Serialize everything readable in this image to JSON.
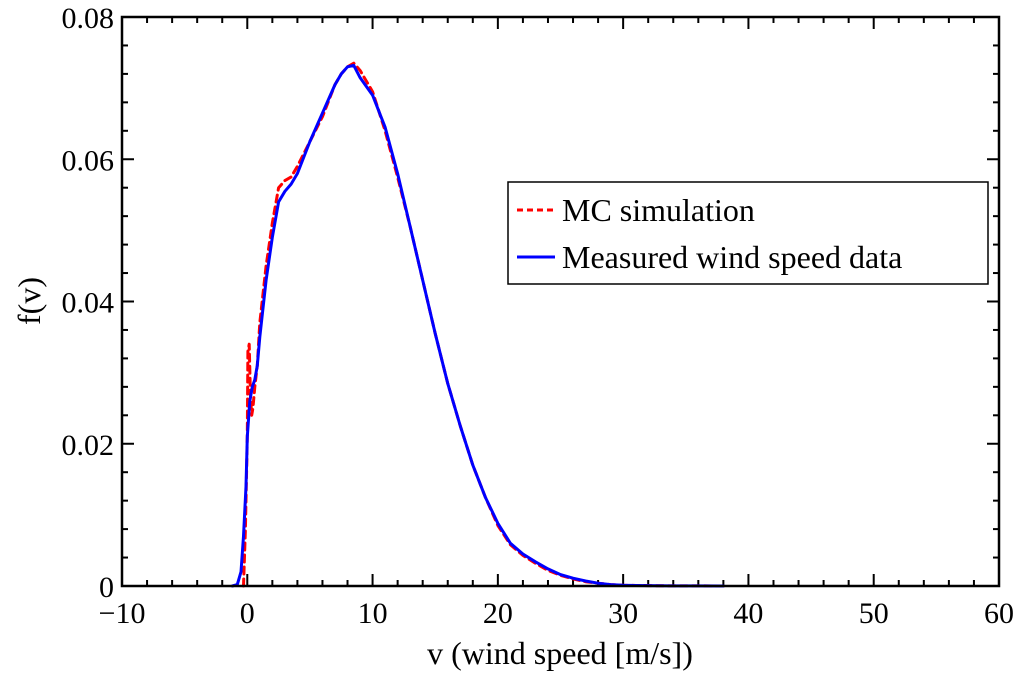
{
  "chart_data": {
    "type": "line",
    "title": "",
    "xlabel": "v (wind speed [m/s])",
    "ylabel": "f(v)",
    "xlim": [
      -10,
      60
    ],
    "ylim": [
      0,
      0.08
    ],
    "xticks": [
      -10,
      0,
      10,
      20,
      30,
      40,
      50,
      60
    ],
    "xtick_labels": [
      "−10",
      "0",
      "10",
      "20",
      "30",
      "40",
      "50",
      "60"
    ],
    "yticks": [
      0,
      0.02,
      0.04,
      0.06,
      0.08
    ],
    "ytick_labels": [
      "0",
      "0.02",
      "0.04",
      "0.06",
      "0.08"
    ],
    "grid": false,
    "legend_position": "right",
    "series": [
      {
        "name": "MC simulation",
        "color": "#ff0000",
        "style": "dashed",
        "x": [
          -0.3,
          -0.15,
          0.0,
          0.05,
          0.15,
          0.25,
          0.35,
          0.45,
          0.6,
          0.8,
          1.0,
          1.5,
          2.0,
          2.5,
          3.0,
          3.5,
          4.0,
          5.0,
          6.0,
          7.0,
          7.5,
          8.0,
          8.5,
          9.0,
          10.0,
          11.0,
          12.0,
          13.0,
          14.0,
          15.0,
          16.0,
          17.0,
          18.0,
          19.0,
          20.0,
          21.0,
          22.0,
          23.0,
          24.0,
          25.0,
          26.0,
          27.0,
          28.0,
          29.0,
          30.0,
          32.0,
          34.0,
          36.0,
          38.0
        ],
        "y": [
          0.0,
          0.008,
          0.021,
          0.033,
          0.034,
          0.027,
          0.024,
          0.025,
          0.028,
          0.031,
          0.037,
          0.045,
          0.051,
          0.056,
          0.057,
          0.0575,
          0.059,
          0.0625,
          0.066,
          0.0705,
          0.072,
          0.073,
          0.0735,
          0.0725,
          0.0695,
          0.064,
          0.0575,
          0.0505,
          0.043,
          0.0355,
          0.0285,
          0.0225,
          0.017,
          0.0125,
          0.0085,
          0.0058,
          0.0043,
          0.0032,
          0.0022,
          0.0015,
          0.001,
          0.0006,
          0.0004,
          0.0002,
          0.0001,
          5e-05,
          2e-05,
          1e-05,
          0.0
        ]
      },
      {
        "name": "Measured wind speed data",
        "color": "#0000ff",
        "style": "solid",
        "x": [
          -1.2,
          -0.8,
          -0.5,
          -0.3,
          -0.1,
          0.0,
          0.2,
          0.4,
          0.6,
          0.8,
          1.0,
          1.5,
          2.0,
          2.5,
          3.0,
          3.5,
          4.0,
          5.0,
          6.0,
          7.0,
          7.5,
          8.0,
          8.5,
          9.0,
          10.0,
          11.0,
          12.0,
          13.0,
          14.0,
          15.0,
          16.0,
          17.0,
          18.0,
          19.0,
          20.0,
          21.0,
          22.0,
          23.0,
          24.0,
          25.0,
          26.0,
          27.0,
          28.0,
          29.0,
          30.0,
          32.0,
          34.0,
          36.0,
          38.0
        ],
        "y": [
          0.0,
          0.0002,
          0.002,
          0.007,
          0.014,
          0.021,
          0.026,
          0.028,
          0.029,
          0.031,
          0.035,
          0.043,
          0.049,
          0.054,
          0.0555,
          0.0565,
          0.058,
          0.0625,
          0.0665,
          0.0705,
          0.072,
          0.073,
          0.0732,
          0.0715,
          0.069,
          0.0645,
          0.058,
          0.0505,
          0.043,
          0.0355,
          0.0285,
          0.0225,
          0.017,
          0.0125,
          0.0088,
          0.006,
          0.0045,
          0.0034,
          0.0024,
          0.0016,
          0.0011,
          0.0007,
          0.0004,
          0.0002,
          0.0001,
          5e-05,
          2e-05,
          1e-05,
          0.0
        ]
      }
    ]
  }
}
